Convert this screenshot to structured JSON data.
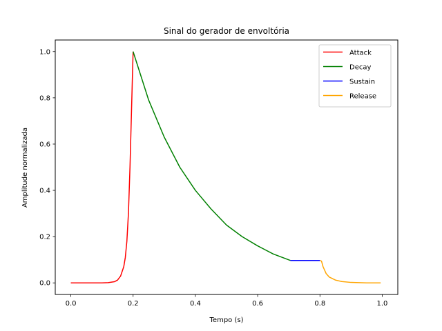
{
  "chart_data": {
    "type": "line",
    "title": "Sinal do gerador de envoltória",
    "xlabel": "Tempo (s)",
    "ylabel": "Amplitude normalizada",
    "xlim": [
      -0.05,
      1.05
    ],
    "ylim": [
      -0.05,
      1.05
    ],
    "xticks": [
      0.0,
      0.2,
      0.4,
      0.6,
      0.8,
      1.0
    ],
    "xtick_labels": [
      "0.0",
      "0.2",
      "0.4",
      "0.6",
      "0.8",
      "1.0"
    ],
    "yticks": [
      0.0,
      0.2,
      0.4,
      0.6,
      0.8,
      1.0
    ],
    "ytick_labels": [
      "0.0",
      "0.2",
      "0.4",
      "0.6",
      "0.8",
      "1.0"
    ],
    "grid": false,
    "legend_position": "top-right",
    "series": [
      {
        "name": "Attack",
        "color": "#ff0000",
        "x": [
          0.0,
          0.05,
          0.1,
          0.12,
          0.14,
          0.15,
          0.16,
          0.17,
          0.175,
          0.18,
          0.185,
          0.19,
          0.195,
          0.2
        ],
        "y": [
          0.0,
          0.0,
          0.0,
          0.001,
          0.005,
          0.012,
          0.03,
          0.07,
          0.11,
          0.18,
          0.3,
          0.5,
          0.75,
          1.0
        ]
      },
      {
        "name": "Decay",
        "color": "#008000",
        "x": [
          0.2,
          0.25,
          0.3,
          0.35,
          0.4,
          0.45,
          0.5,
          0.55,
          0.6,
          0.65,
          0.705
        ],
        "y": [
          1.0,
          0.79,
          0.63,
          0.5,
          0.4,
          0.32,
          0.25,
          0.2,
          0.16,
          0.125,
          0.097
        ]
      },
      {
        "name": "Sustain",
        "color": "#0000ff",
        "x": [
          0.705,
          0.8
        ],
        "y": [
          0.097,
          0.097
        ]
      },
      {
        "name": "Release",
        "color": "#ffa500",
        "x": [
          0.8,
          0.805,
          0.81,
          0.82,
          0.83,
          0.85,
          0.87,
          0.9,
          0.95,
          0.995
        ],
        "y": [
          0.097,
          0.094,
          0.07,
          0.04,
          0.025,
          0.012,
          0.006,
          0.002,
          0.0,
          0.0
        ]
      }
    ]
  }
}
